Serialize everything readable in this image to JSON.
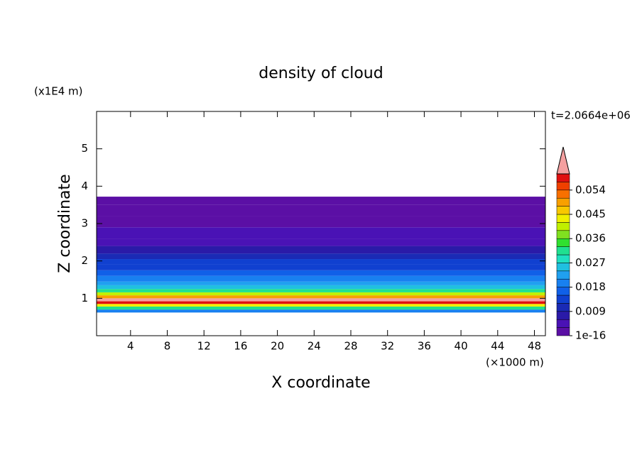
{
  "chart_data": {
    "type": "contour-profile",
    "title": "density of cloud",
    "x_label": "X coordinate",
    "y_label": "Z coordinate",
    "x_unit": "(×1000 m)",
    "y_unit": "(x1E4 m)",
    "annotation": "t=2.0664e+06",
    "xlim": [
      0.3,
      49.2
    ],
    "xticks": [
      4,
      8,
      12,
      16,
      20,
      24,
      28,
      32,
      36,
      40,
      44,
      48
    ],
    "ylim": [
      0,
      6
    ],
    "yticks": [
      1,
      2,
      3,
      4,
      5
    ],
    "y_bins": [
      0.62,
      0.7,
      0.78,
      0.85,
      0.92,
      1.0,
      1.08,
      1.16,
      1.25,
      1.35,
      1.45,
      1.6,
      1.75,
      1.9,
      2.05,
      2.2,
      2.4,
      2.6,
      2.9,
      3.2,
      3.5,
      3.72
    ],
    "values": [
      0.021,
      0.033,
      0.045,
      0.058,
      0.062,
      0.05,
      0.041,
      0.033,
      0.027,
      0.024,
      0.02,
      0.017,
      0.015,
      0.014,
      0.011,
      0.007,
      0.005,
      0.004,
      0.003,
      0.002,
      0.001
    ],
    "clim": [
      1e-16,
      0.06
    ],
    "cticks": [
      1e-16,
      0.009,
      0.018,
      0.027,
      0.036,
      0.045,
      0.054
    ],
    "colors": [
      "#5b0fa5",
      "#4a12b5",
      "#2a1aa8",
      "#1a2ab5",
      "#1040d0",
      "#1060e8",
      "#1880f0",
      "#20a0f0",
      "#20c0e0",
      "#20e0c0",
      "#20e090",
      "#30e030",
      "#80e020",
      "#c0f000",
      "#f0f000",
      "#f8c800",
      "#f8a000",
      "#f87000",
      "#f04000",
      "#e01010"
    ],
    "over_color": "#f4a0a0"
  }
}
